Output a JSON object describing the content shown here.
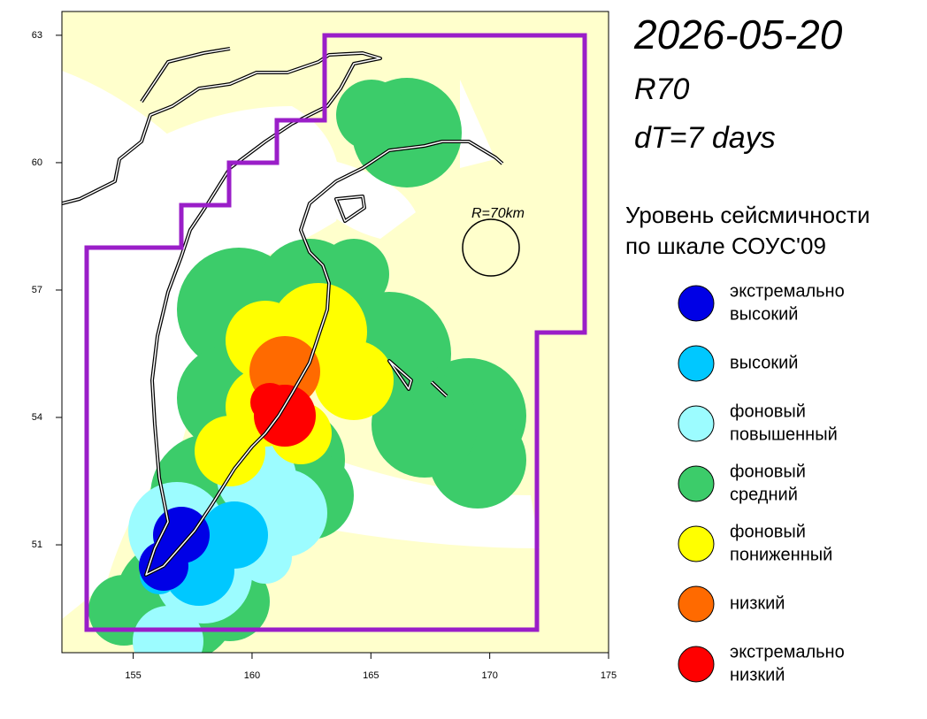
{
  "map": {
    "title": "2026-05-20",
    "subtitle": "R70",
    "period": "dT=7 days",
    "radius_label": "R=70km",
    "xlim": [
      152,
      175
    ],
    "ylim": [
      48.46,
      63.56
    ],
    "xticks": [
      155,
      160,
      165,
      170,
      175
    ],
    "yticks": [
      51,
      54,
      57,
      60,
      63
    ],
    "legend": {
      "title": [
        "Уровень сейсмичности",
        "по шкале СОУС'09"
      ],
      "items": [
        {
          "color": "#0000e6",
          "label": [
            "экстремально",
            "высокий"
          ]
        },
        {
          "color": "#00c8ff",
          "label": [
            "высокий"
          ]
        },
        {
          "color": "#9cfcff",
          "label": [
            "фоновый",
            "повышенный"
          ]
        },
        {
          "color": "#3ccc6a",
          "label": [
            "фоновый",
            "средний"
          ]
        },
        {
          "color": "#ffff00",
          "label": [
            "фоновый",
            "пониженный"
          ]
        },
        {
          "color": "#ff6a00",
          "label": [
            "низкий"
          ]
        },
        {
          "color": "#ff0000",
          "label": [
            "экстремально",
            "низкий"
          ]
        }
      ]
    }
  }
}
